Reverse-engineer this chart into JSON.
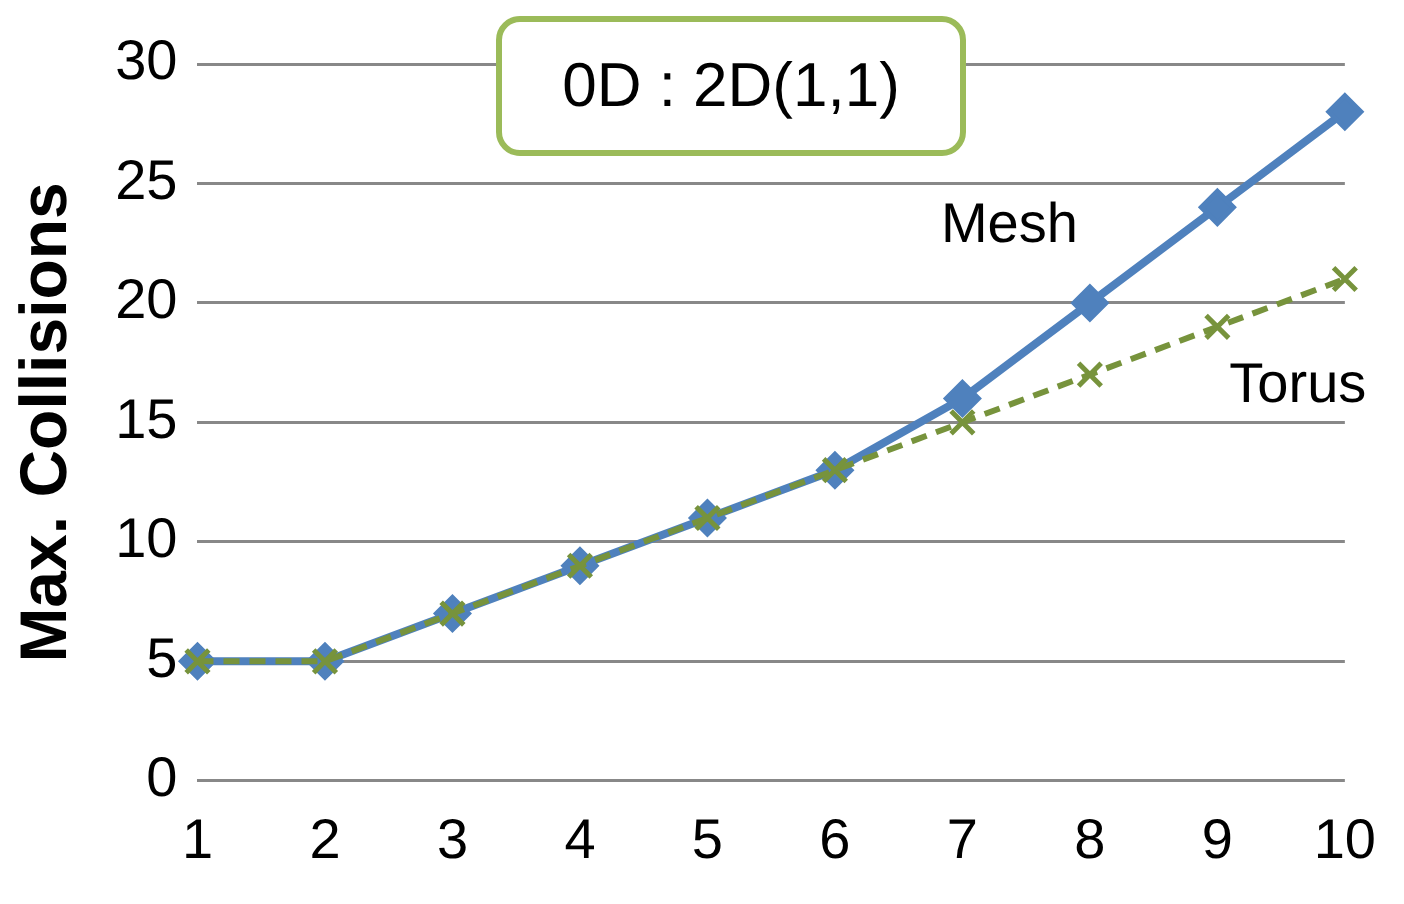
{
  "chart_data": {
    "type": "line",
    "title": "0D : 2D(1,1)",
    "ylabel": "Max. Collisions",
    "categories": [
      "1",
      "2",
      "3",
      "4",
      "5",
      "6",
      "7",
      "8",
      "9",
      "10"
    ],
    "series": [
      {
        "name": "Mesh",
        "color": "#4f81bd",
        "marker": "diamond",
        "line_style": "solid",
        "values": [
          5,
          5,
          7,
          9,
          11,
          13,
          16,
          20,
          24,
          28
        ]
      },
      {
        "name": "Torus",
        "color": "#77933c",
        "marker": "cross",
        "line_style": "dashed",
        "values": [
          5,
          5,
          7,
          9,
          11,
          13,
          15,
          17,
          19,
          21
        ]
      }
    ],
    "ylim": [
      0,
      30
    ],
    "yticks": [
      0,
      5,
      10,
      15,
      20,
      25,
      30
    ],
    "grid": "y",
    "legend": false
  }
}
